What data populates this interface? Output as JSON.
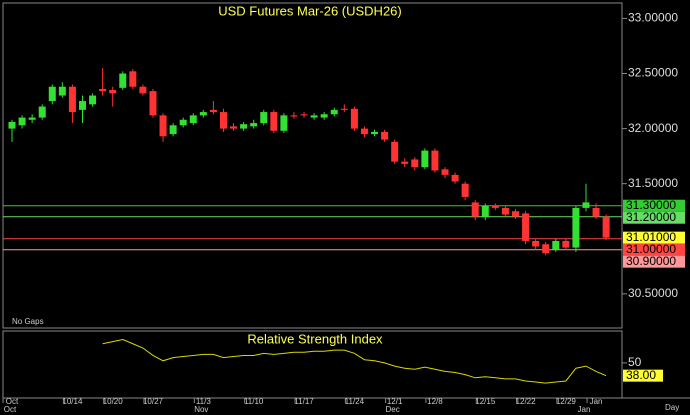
{
  "chart_data": [
    {
      "type": "candlestick",
      "title": "USD Futures Mar-26 (USDH26)",
      "categories": [
        "Oct",
        null,
        null,
        null,
        null,
        null,
        "10/14",
        null,
        null,
        null,
        "10/20",
        null,
        null,
        null,
        "10/27",
        null,
        null,
        null,
        null,
        "11/3",
        null,
        null,
        null,
        null,
        "11/10",
        null,
        null,
        null,
        null,
        "11/17",
        null,
        null,
        null,
        null,
        "11/24",
        null,
        null,
        null,
        "12/1",
        null,
        null,
        null,
        "12/8",
        null,
        null,
        null,
        null,
        "12/15",
        null,
        null,
        null,
        "12/22",
        null,
        null,
        null,
        "12/29",
        null,
        null,
        "Jan",
        null
      ],
      "categories2": [
        "Oct",
        null,
        null,
        null,
        null,
        null,
        null,
        null,
        null,
        null,
        null,
        null,
        null,
        null,
        null,
        null,
        null,
        null,
        null,
        "Nov",
        null,
        null,
        null,
        null,
        null,
        null,
        null,
        null,
        null,
        null,
        null,
        null,
        null,
        null,
        null,
        null,
        null,
        null,
        "Dec",
        null,
        null,
        null,
        null,
        null,
        null,
        null,
        null,
        null,
        null,
        null,
        null,
        null,
        null,
        null,
        null,
        null,
        null,
        "Jan",
        null
      ],
      "open": [
        32.0,
        32.03,
        32.08,
        32.1,
        32.25,
        32.3,
        32.38,
        32.17,
        32.22,
        32.36,
        32.35,
        32.37,
        32.52,
        32.38,
        32.34,
        32.12,
        31.95,
        32.03,
        32.05,
        32.12,
        32.17,
        32.15,
        32.02,
        32.0,
        32.02,
        32.05,
        32.15,
        31.98,
        32.12,
        32.13,
        32.1,
        32.1,
        32.13,
        32.18,
        32.18,
        32.0,
        31.95,
        31.97,
        31.88,
        31.7,
        31.72,
        31.65,
        31.8,
        31.63,
        31.58,
        31.5,
        31.33,
        31.2,
        31.3,
        31.28,
        31.25,
        31.23,
        30.98,
        30.95,
        30.9,
        30.98,
        30.92,
        31.28,
        31.28,
        31.2
      ],
      "high": [
        32.08,
        32.12,
        32.13,
        32.22,
        32.4,
        32.42,
        32.4,
        32.3,
        32.32,
        32.55,
        32.38,
        32.52,
        32.54,
        32.4,
        32.36,
        32.14,
        32.05,
        32.1,
        32.14,
        32.17,
        32.25,
        32.18,
        32.05,
        32.06,
        32.08,
        32.17,
        32.17,
        32.14,
        32.15,
        32.15,
        32.14,
        32.15,
        32.19,
        32.22,
        32.2,
        32.02,
        31.99,
        31.99,
        31.9,
        31.73,
        31.74,
        31.82,
        31.82,
        31.65,
        31.6,
        31.52,
        31.35,
        31.32,
        31.32,
        31.3,
        31.27,
        31.25,
        31.0,
        30.97,
        31.0,
        31.0,
        31.3,
        31.5,
        31.32,
        31.22
      ],
      "low": [
        31.88,
        32.0,
        32.05,
        32.08,
        32.22,
        32.28,
        32.05,
        32.05,
        32.2,
        32.3,
        32.2,
        32.35,
        32.36,
        32.3,
        32.1,
        31.88,
        31.93,
        32.01,
        32.03,
        32.1,
        32.13,
        31.97,
        31.98,
        31.98,
        32.0,
        32.03,
        31.96,
        31.96,
        32.09,
        32.1,
        32.08,
        32.08,
        32.11,
        32.15,
        31.98,
        31.92,
        31.93,
        31.88,
        31.68,
        31.65,
        31.62,
        31.63,
        31.6,
        31.55,
        31.5,
        31.35,
        31.17,
        31.17,
        31.26,
        31.2,
        31.18,
        30.95,
        30.9,
        30.85,
        30.88,
        30.9,
        30.88,
        31.25,
        31.18,
        30.99
      ],
      "close": [
        32.06,
        32.1,
        32.1,
        32.2,
        32.38,
        32.38,
        32.15,
        32.25,
        32.3,
        32.34,
        32.32,
        32.5,
        32.38,
        32.32,
        32.12,
        31.93,
        32.03,
        32.08,
        32.12,
        32.15,
        32.15,
        32.0,
        32.0,
        32.04,
        32.05,
        32.15,
        31.98,
        32.12,
        32.11,
        32.12,
        32.12,
        32.13,
        32.17,
        32.17,
        32.0,
        31.95,
        31.97,
        31.9,
        31.7,
        31.68,
        31.65,
        31.8,
        31.62,
        31.58,
        31.52,
        31.38,
        31.2,
        31.3,
        31.28,
        31.22,
        31.2,
        30.98,
        30.93,
        30.87,
        30.98,
        30.92,
        31.28,
        31.33,
        31.2,
        31.01
      ],
      "close_labels": [
        null,
        null,
        null,
        null,
        null,
        null,
        null,
        null,
        null,
        null,
        null,
        null,
        null,
        null,
        null,
        null,
        null,
        null,
        null,
        null,
        null,
        null,
        null,
        null,
        null,
        null,
        null,
        null,
        null,
        null,
        null,
        null,
        null,
        null,
        null,
        null,
        null,
        null,
        null,
        null,
        null,
        null,
        null,
        null,
        null,
        null,
        null,
        null,
        null,
        null,
        null,
        null,
        null,
        null,
        null,
        null,
        null,
        null,
        null,
        "31.01000"
      ],
      "up_color": "#33e033",
      "down_color": "#ff3333",
      "ylim": [
        30.19,
        33.14
      ],
      "yticks": [
        {
          "value": 30.5,
          "label": "30.50000"
        },
        {
          "value": 31.5,
          "label": "31.50000"
        },
        {
          "value": 32,
          "label": "32.00000"
        },
        {
          "value": 32.5,
          "label": "32.50000"
        },
        {
          "value": 33,
          "label": "33.00000"
        }
      ],
      "levels": [
        {
          "value": 31.3,
          "label": "31.30000",
          "color": "#33cc33"
        },
        {
          "value": 31.2,
          "label": "31.20000",
          "color": "#66dd66"
        },
        {
          "value": 31,
          "label": "31.00000",
          "color": "#ff4444"
        },
        {
          "value": 30.9,
          "label": "30.90000",
          "color": "#ff9999"
        }
      ],
      "note": "No Gaps",
      "x_unit": "Day"
    },
    {
      "type": "line",
      "title": "Relative Strength Index",
      "color": "#d8d800",
      "values": [
        null,
        null,
        null,
        null,
        null,
        null,
        null,
        null,
        null,
        68,
        70,
        72,
        68,
        64,
        57,
        52,
        55,
        56,
        57,
        58,
        58,
        55,
        56,
        57,
        57,
        59,
        58,
        59,
        60,
        60,
        61,
        61,
        62,
        62,
        59,
        53,
        52,
        50,
        47,
        45,
        44,
        46,
        44,
        42,
        41,
        39,
        36,
        37,
        36,
        35,
        35,
        33,
        32,
        31,
        32,
        33,
        45,
        47,
        42,
        38
      ],
      "value_labels": [
        null,
        null,
        null,
        null,
        null,
        null,
        null,
        null,
        null,
        null,
        null,
        null,
        null,
        null,
        null,
        null,
        null,
        null,
        null,
        null,
        null,
        null,
        null,
        null,
        null,
        null,
        null,
        null,
        null,
        null,
        null,
        null,
        null,
        null,
        null,
        null,
        null,
        null,
        null,
        null,
        null,
        null,
        null,
        null,
        null,
        null,
        null,
        null,
        null,
        null,
        null,
        null,
        null,
        null,
        null,
        null,
        null,
        null,
        null,
        "38.00"
      ],
      "ylim": [
        17,
        80
      ],
      "yticks": [
        50
      ]
    }
  ]
}
